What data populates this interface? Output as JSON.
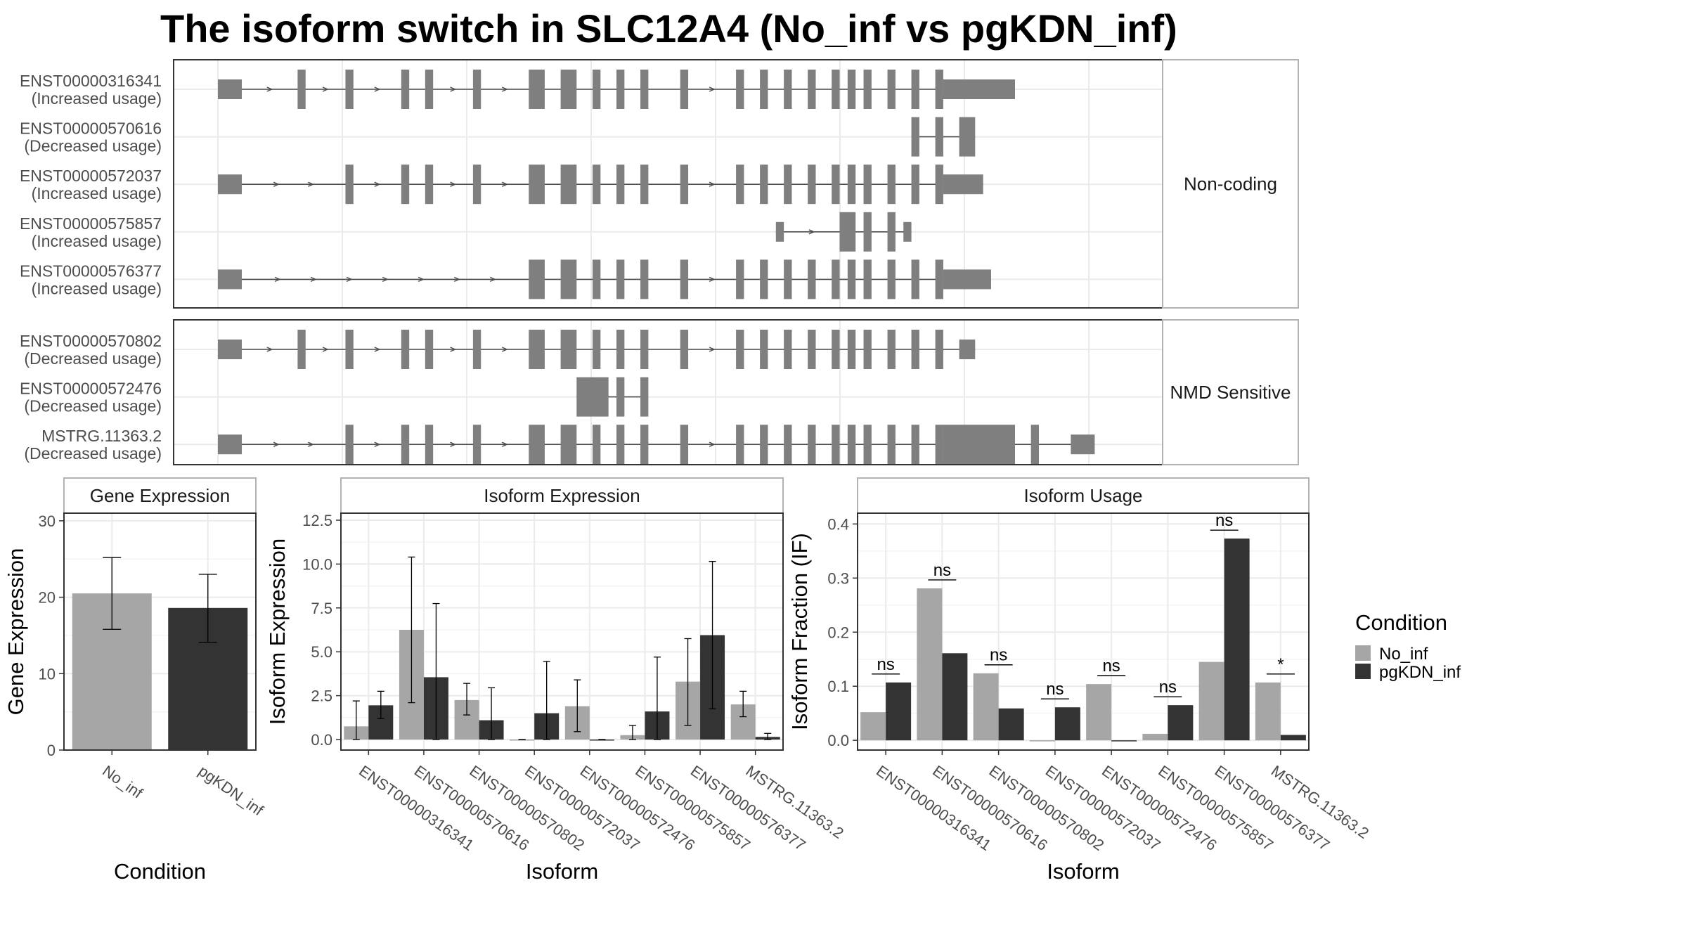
{
  "title": "The isoform switch in SLC12A4 (No_inf vs pgKDN_inf)",
  "colors": {
    "exon": "#7f7f7f",
    "intron": "#4d4d4d",
    "no_inf": "#a6a6a6",
    "pgkdn_inf": "#333333",
    "grid": "#ebebeb",
    "panel_border": "#333333",
    "strip_fill": "#ffffff",
    "strip_border": "#b3b3b3"
  },
  "structure": {
    "groups": [
      {
        "name": "Non-coding",
        "isoforms": [
          {
            "id": "ENST00000316341",
            "status": "(Increased usage)",
            "exons": [
              [
                0.0,
                0.03
              ],
              [
                0.1,
                0.11
              ],
              [
                0.16,
                0.17
              ],
              [
                0.23,
                0.24
              ],
              [
                0.26,
                0.27
              ],
              [
                0.32,
                0.33
              ],
              [
                0.39,
                0.41
              ],
              [
                0.43,
                0.45
              ],
              [
                0.47,
                0.48
              ],
              [
                0.5,
                0.51
              ],
              [
                0.53,
                0.54
              ],
              [
                0.58,
                0.59
              ],
              [
                0.65,
                0.66
              ],
              [
                0.68,
                0.69
              ],
              [
                0.71,
                0.72
              ],
              [
                0.74,
                0.75
              ],
              [
                0.77,
                0.78
              ],
              [
                0.79,
                0.8
              ],
              [
                0.81,
                0.82
              ],
              [
                0.84,
                0.85
              ],
              [
                0.87,
                0.88
              ],
              [
                0.9,
                0.91
              ],
              [
                0.91,
                1.0
              ]
            ]
          },
          {
            "id": "ENST00000570616",
            "status": "(Decreased usage)",
            "exons": [
              [
                0.87,
                0.88
              ],
              [
                0.9,
                0.91
              ],
              [
                0.93,
                0.95
              ]
            ]
          },
          {
            "id": "ENST00000572037",
            "status": "(Increased usage)",
            "exons": [
              [
                0.0,
                0.03
              ],
              [
                0.16,
                0.17
              ],
              [
                0.23,
                0.24
              ],
              [
                0.26,
                0.27
              ],
              [
                0.32,
                0.33
              ],
              [
                0.39,
                0.41
              ],
              [
                0.43,
                0.45
              ],
              [
                0.47,
                0.48
              ],
              [
                0.5,
                0.51
              ],
              [
                0.53,
                0.54
              ],
              [
                0.58,
                0.59
              ],
              [
                0.65,
                0.66
              ],
              [
                0.68,
                0.69
              ],
              [
                0.71,
                0.72
              ],
              [
                0.74,
                0.75
              ],
              [
                0.77,
                0.78
              ],
              [
                0.79,
                0.8
              ],
              [
                0.81,
                0.82
              ],
              [
                0.84,
                0.85
              ],
              [
                0.87,
                0.88
              ],
              [
                0.9,
                0.91
              ],
              [
                0.91,
                0.96
              ]
            ]
          },
          {
            "id": "ENST00000575857",
            "status": "(Increased usage)",
            "exons": [
              [
                0.7,
                0.71
              ],
              [
                0.78,
                0.8
              ],
              [
                0.81,
                0.82
              ],
              [
                0.84,
                0.85
              ],
              [
                0.86,
                0.87
              ]
            ]
          },
          {
            "id": "ENST00000576377",
            "status": "(Increased usage)",
            "exons": [
              [
                0.0,
                0.03
              ],
              [
                0.39,
                0.41
              ],
              [
                0.43,
                0.45
              ],
              [
                0.47,
                0.48
              ],
              [
                0.5,
                0.51
              ],
              [
                0.53,
                0.54
              ],
              [
                0.58,
                0.59
              ],
              [
                0.65,
                0.66
              ],
              [
                0.68,
                0.69
              ],
              [
                0.71,
                0.72
              ],
              [
                0.74,
                0.75
              ],
              [
                0.77,
                0.78
              ],
              [
                0.79,
                0.8
              ],
              [
                0.81,
                0.82
              ],
              [
                0.84,
                0.85
              ],
              [
                0.87,
                0.88
              ],
              [
                0.9,
                0.91
              ],
              [
                0.91,
                0.97
              ]
            ]
          }
        ]
      },
      {
        "name": "NMD Sensitive",
        "isoforms": [
          {
            "id": "ENST00000570802",
            "status": "(Decreased usage)",
            "exons": [
              [
                0.0,
                0.03
              ],
              [
                0.1,
                0.11
              ],
              [
                0.16,
                0.17
              ],
              [
                0.23,
                0.24
              ],
              [
                0.26,
                0.27
              ],
              [
                0.32,
                0.33
              ],
              [
                0.39,
                0.41
              ],
              [
                0.43,
                0.45
              ],
              [
                0.47,
                0.48
              ],
              [
                0.5,
                0.51
              ],
              [
                0.53,
                0.54
              ],
              [
                0.58,
                0.59
              ],
              [
                0.65,
                0.66
              ],
              [
                0.68,
                0.69
              ],
              [
                0.71,
                0.72
              ],
              [
                0.74,
                0.75
              ],
              [
                0.77,
                0.78
              ],
              [
                0.79,
                0.8
              ],
              [
                0.81,
                0.82
              ],
              [
                0.84,
                0.85
              ],
              [
                0.87,
                0.88
              ],
              [
                0.9,
                0.91
              ],
              [
                0.93,
                0.95
              ]
            ]
          },
          {
            "id": "ENST00000572476",
            "status": "(Decreased usage)",
            "exons": [
              [
                0.45,
                0.49
              ],
              [
                0.5,
                0.51
              ],
              [
                0.53,
                0.54
              ]
            ]
          },
          {
            "id": "MSTRG.11363.2",
            "status": "(Decreased usage)",
            "exons": [
              [
                0.0,
                0.03
              ],
              [
                0.16,
                0.17
              ],
              [
                0.23,
                0.24
              ],
              [
                0.26,
                0.27
              ],
              [
                0.32,
                0.33
              ],
              [
                0.39,
                0.41
              ],
              [
                0.43,
                0.45
              ],
              [
                0.47,
                0.48
              ],
              [
                0.5,
                0.51
              ],
              [
                0.53,
                0.54
              ],
              [
                0.58,
                0.59
              ],
              [
                0.65,
                0.66
              ],
              [
                0.68,
                0.69
              ],
              [
                0.71,
                0.72
              ],
              [
                0.74,
                0.75
              ],
              [
                0.77,
                0.78
              ],
              [
                0.79,
                0.8
              ],
              [
                0.81,
                0.82
              ],
              [
                0.84,
                0.85
              ],
              [
                0.87,
                0.88
              ],
              [
                0.9,
                0.91
              ],
              [
                0.91,
                1.0
              ],
              [
                1.02,
                1.03
              ],
              [
                1.07,
                1.1
              ]
            ]
          }
        ]
      }
    ]
  },
  "chart_data": [
    {
      "type": "bar",
      "title": "Gene Expression",
      "xlabel": "Condition",
      "ylabel": "Gene Expression",
      "categories": [
        "No_inf",
        "pgKDN_inf"
      ],
      "values": [
        20.5,
        18.6
      ],
      "error": [
        [
          15.8,
          25.2
        ],
        [
          14.1,
          23.0
        ]
      ],
      "ylim": [
        0,
        31
      ],
      "yticks": [
        0,
        10,
        20,
        30
      ]
    },
    {
      "type": "bar",
      "title": "Isoform Expression",
      "xlabel": "Isoform",
      "ylabel": "Isoform Expression",
      "categories": [
        "ENST00000316341",
        "ENST00000570616",
        "ENST00000570802",
        "ENST00000572037",
        "ENST00000572476",
        "ENST00000575857",
        "ENST00000576377",
        "MSTRG.11363.2"
      ],
      "series": [
        {
          "name": "No_inf",
          "values": [
            0.75,
            6.25,
            2.25,
            0.0,
            1.9,
            0.25,
            3.3,
            2.0
          ],
          "error": [
            [
              0.0,
              2.2
            ],
            [
              2.1,
              10.4
            ],
            [
              1.4,
              3.2
            ],
            [
              0.0,
              0.0
            ],
            [
              0.45,
              3.4
            ],
            [
              0.0,
              0.8
            ],
            [
              0.8,
              5.75
            ],
            [
              1.3,
              2.75
            ]
          ]
        },
        {
          "name": "pgKDN_inf",
          "values": [
            1.95,
            3.55,
            1.1,
            1.5,
            0.0,
            1.6,
            5.95,
            0.15
          ],
          "error": [
            [
              1.2,
              2.75
            ],
            [
              0.0,
              7.75
            ],
            [
              0.0,
              2.95
            ],
            [
              0.0,
              4.45
            ],
            [
              0.0,
              0.0
            ],
            [
              0.0,
              4.7
            ],
            [
              1.75,
              10.15
            ],
            [
              0.0,
              0.35
            ]
          ]
        }
      ],
      "ylim": [
        -0.6,
        12.9
      ],
      "yticks": [
        "0.0",
        "2.5",
        "5.0",
        "7.5",
        "10.0",
        "12.5"
      ]
    },
    {
      "type": "bar",
      "title": "Isoform Usage",
      "xlabel": "Isoform",
      "ylabel": "Isoform Fraction (IF)",
      "categories": [
        "ENST00000316341",
        "ENST00000570616",
        "ENST00000570802",
        "ENST00000572037",
        "ENST00000572476",
        "ENST00000575857",
        "ENST00000576377",
        "MSTRG.11363.2"
      ],
      "series": [
        {
          "name": "No_inf",
          "values": [
            0.052,
            0.281,
            0.124,
            0.0,
            0.104,
            0.012,
            0.145,
            0.107
          ]
        },
        {
          "name": "pgKDN_inf",
          "values": [
            0.107,
            0.161,
            0.059,
            0.061,
            0.0,
            0.065,
            0.373,
            0.01
          ]
        }
      ],
      "significance": [
        "ns",
        "ns",
        "ns",
        "ns",
        "ns",
        "ns",
        "ns",
        "*"
      ],
      "ylim": [
        -0.018,
        0.42
      ],
      "yticks": [
        "0.0",
        "0.1",
        "0.2",
        "0.3",
        "0.4"
      ]
    }
  ],
  "legend": {
    "title": "Condition",
    "items": [
      {
        "label": "No_inf",
        "color": "#a6a6a6"
      },
      {
        "label": "pgKDN_inf",
        "color": "#333333"
      }
    ]
  }
}
